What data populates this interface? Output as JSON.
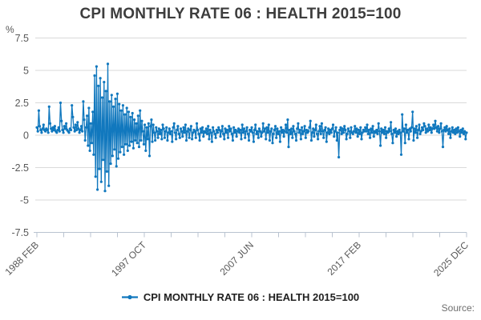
{
  "title": "CPI MONTHLY RATE 06 : HEALTH 2015=100",
  "y_axis_unit": "%",
  "source_label": "Source:",
  "legend": {
    "label": "CPI MONTHLY RATE 06 : HEALTH 2015=100",
    "marker_color": "#1178be"
  },
  "chart_data": {
    "type": "line",
    "title": "CPI MONTHLY RATE 06 : HEALTH 2015=100",
    "xlabel": "",
    "ylabel": "%",
    "ylim": [
      -7.5,
      7.5
    ],
    "y_ticks": [
      7.5,
      5,
      2.5,
      0,
      -2.5,
      -5,
      -7.5
    ],
    "x_tick_labels": [
      "1988 FEB",
      "1997 OCT",
      "2007 JUN",
      "2017 FEB",
      "2025 DEC"
    ],
    "x_total_ticks": 17,
    "x_labeled_tick_indices": [
      0,
      4,
      8,
      12,
      16
    ],
    "frequency": "monthly",
    "start_month": "1988 FEB",
    "end_month": "2025 DEC",
    "grid": "horizontal",
    "legend_position": "bottom",
    "line_color": "#1178be",
    "grid_color": "#dadada",
    "axis_color": "#b9c3d0",
    "tick_label_color": "#595959",
    "series": [
      {
        "name": "CPI MONTHLY RATE 06 : HEALTH 2015=100",
        "values": [
          0.6,
          0.3,
          1.9,
          0.7,
          0.4,
          0.2,
          0.5,
          0.8,
          0.4,
          0.3,
          0.5,
          0.4,
          0.2,
          2.2,
          0.9,
          0.5,
          0.3,
          0.6,
          0.4,
          0.7,
          0.3,
          0.2,
          0.4,
          0.6,
          0.3,
          2.5,
          1.1,
          0.4,
          0.2,
          0.7,
          0.5,
          0.9,
          0.4,
          0.3,
          0.2,
          0.5,
          0.4,
          2.3,
          1.4,
          0.6,
          0.3,
          0.8,
          0.4,
          1.0,
          0.5,
          0.2,
          0.4,
          0.7,
          0.3,
          2.6,
          1.2,
          -0.4,
          0.6,
          1.5,
          -0.8,
          2.1,
          -1.2,
          0.9,
          -0.6,
          1.8,
          -1.5,
          4.6,
          -3.2,
          5.3,
          -4.2,
          3.8,
          -2.6,
          4.4,
          -3.6,
          2.9,
          -1.9,
          4.1,
          -4.3,
          3.4,
          -2.8,
          5.5,
          -3.9,
          2.6,
          -2.2,
          3.1,
          -1.6,
          2.2,
          -1.1,
          2.8,
          -2.4,
          3.2,
          -1.8,
          2.4,
          -1.3,
          1.9,
          -0.9,
          2.3,
          -1.5,
          1.6,
          -0.7,
          2.1,
          -1.2,
          1.8,
          -0.8,
          1.4,
          -0.5,
          1.7,
          -1.0,
          1.2,
          -0.4,
          0.9,
          -0.6,
          1.5,
          -0.9,
          1.9,
          -0.4,
          1.1,
          0.3,
          -0.7,
          0.8,
          -1.2,
          0.6,
          -0.3,
          0.9,
          -1.6,
          0.7,
          1.2,
          -0.5,
          0.8,
          0.2,
          -0.4,
          0.6,
          0.3,
          -0.2,
          0.5,
          0.1,
          0.4,
          -0.3,
          0.8,
          0.5,
          -0.2,
          0.3,
          0.6,
          -0.4,
          0.2,
          0.5,
          0.1,
          0.3,
          -0.5,
          0.6,
          0.9,
          0.2,
          -0.3,
          0.4,
          0.7,
          0.1,
          -0.2,
          0.5,
          0.3,
          -0.1,
          0.6,
          0.2,
          0.8,
          -0.4,
          0.3,
          0.5,
          -0.2,
          0.4,
          0.7,
          -0.3,
          0.2,
          0.4,
          0.3,
          -0.2,
          0.9,
          0.4,
          0.1,
          -0.4,
          0.5,
          0.2,
          0.6,
          -0.1,
          0.3,
          0.2,
          0.5,
          0.1,
          0.7,
          -0.3,
          0.4,
          0.2,
          -0.5,
          0.6,
          0.3,
          0.1,
          -0.2,
          0.4,
          0.2,
          0.6,
          0.4,
          -0.1,
          0.3,
          0.7,
          0.1,
          -0.3,
          0.5,
          0.2,
          0.4,
          -0.2,
          0.7,
          0.3,
          0.5,
          0.1,
          -0.4,
          0.6,
          0.2,
          0.4,
          -0.1,
          0.3,
          0.5,
          0.2,
          0.4,
          -0.3,
          0.8,
          0.2,
          0.5,
          -0.2,
          0.3,
          0.6,
          0.1,
          -0.4,
          0.4,
          0.3,
          0.6,
          0.2,
          -0.5,
          0.4,
          0.8,
          0.1,
          0.3,
          -0.2,
          0.5,
          0.3,
          -0.1,
          0.2,
          0.9,
          0.3,
          0.5,
          -0.3,
          0.6,
          0.2,
          0.8,
          -0.4,
          0.3,
          0.5,
          -0.6,
          0.1,
          0.4,
          0.7,
          -0.2,
          0.5,
          0.1,
          0.3,
          -0.5,
          0.6,
          0.2,
          0.4,
          -0.1,
          0.3,
          0.8,
          0.2,
          1.2,
          -0.9,
          0.4,
          0.1,
          0.5,
          -0.2,
          0.7,
          0.3,
          0.1,
          -0.4,
          0.5,
          0.9,
          0.2,
          0.4,
          -0.3,
          0.6,
          0.1,
          0.3,
          0.7,
          -0.2,
          0.4,
          0.2,
          0.3,
          0.6,
          1.1,
          -0.4,
          0.2,
          0.5,
          -0.1,
          0.4,
          0.8,
          0.1,
          -0.3,
          0.3,
          0.7,
          0.1,
          0.9,
          0.3,
          -0.2,
          0.4,
          0.6,
          -0.5,
          0.2,
          0.5,
          0.1,
          0.4,
          0.2,
          0.5,
          0.8,
          -0.1,
          0.3,
          0.6,
          -0.4,
          0.2,
          -1.7,
          0.4,
          0.6,
          0.1,
          0.5,
          0.2,
          0.7,
          0.4,
          -0.3,
          0.1,
          0.5,
          0.3,
          -0.2,
          0.6,
          0.2,
          0.1,
          0.3,
          0.7,
          0.2,
          0.5,
          -0.1,
          0.4,
          0.1,
          0.6,
          -0.3,
          0.2,
          0.4,
          0.3,
          0.6,
          0.3,
          0.8,
          0.1,
          0.4,
          -0.2,
          0.5,
          0.2,
          0.7,
          -0.1,
          0.3,
          0.2,
          0.4,
          0.1,
          0.9,
          0.3,
          -0.8,
          0.5,
          0.2,
          0.4,
          0.1,
          0.6,
          -0.2,
          0.3,
          0.2,
          0.5,
          0.3,
          1.0,
          0.1,
          -0.6,
          0.4,
          0.2,
          0.5,
          -0.1,
          0.3,
          0.1,
          0.4,
          0.2,
          -1.5,
          1.6,
          0.3,
          0.5,
          -0.6,
          0.8,
          0.2,
          0.4,
          -0.3,
          0.5,
          0.3,
          0.6,
          1.8,
          -0.4,
          0.5,
          0.2,
          0.7,
          -0.2,
          0.4,
          0.8,
          0.1,
          0.3,
          0.6,
          0.4,
          0.9,
          0.7,
          0.2,
          0.5,
          0.3,
          0.8,
          0.4,
          0.6,
          0.2,
          0.5,
          0.8,
          0.5,
          1.1,
          0.6,
          0.3,
          0.7,
          0.2,
          0.5,
          0.9,
          0.3,
          -0.9,
          0.4,
          0.6,
          0.3,
          0.7,
          0.4,
          0.1,
          0.5,
          -0.2,
          0.3,
          0.6,
          0.2,
          0.4,
          0.1,
          0.5,
          0.2,
          0.6,
          0.3,
          -0.1,
          0.4,
          0.2,
          0.5,
          0.1,
          0.3,
          -0.3,
          0.2
        ]
      }
    ]
  }
}
